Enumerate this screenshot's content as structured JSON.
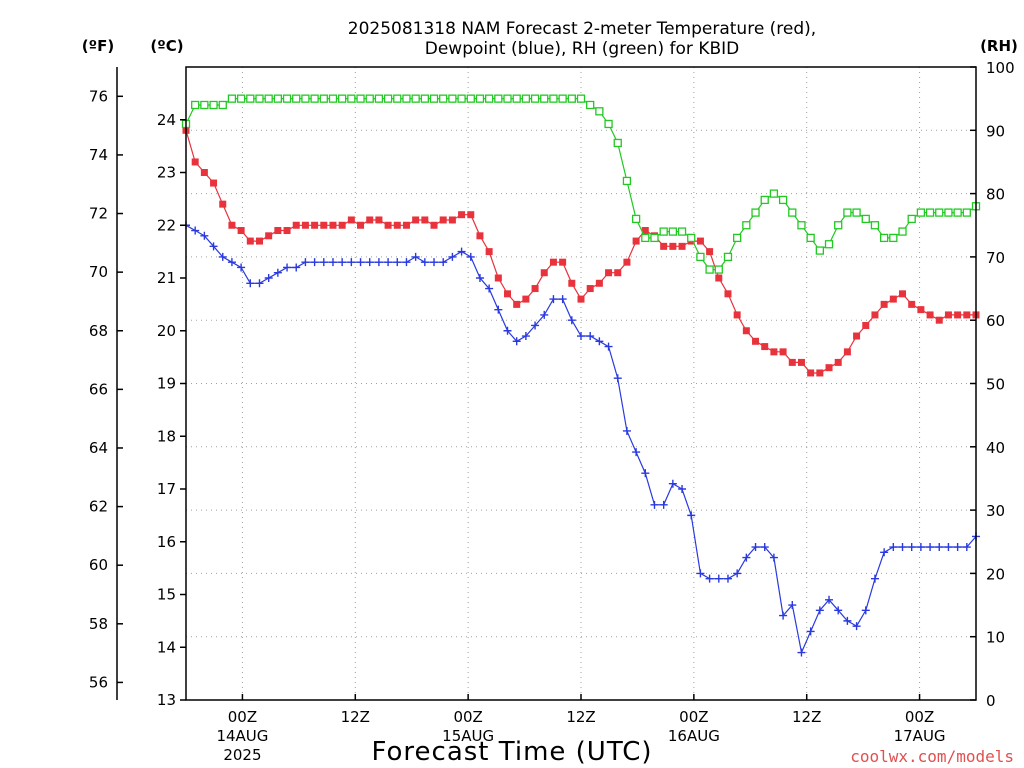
{
  "chart_data": {
    "type": "line",
    "title_line1": "2025081318 NAM Forecast 2-meter Temperature (red),",
    "title_line2": "Dewpoint (blue), RH (green) for KBID",
    "xlabel": "Forecast Time (UTC)",
    "credit": "coolwx.com/models",
    "units": {
      "fahrenheit": "(ºF)",
      "celsius": "(ºC)",
      "rh": "(RH)"
    },
    "x_range_hours": [
      0,
      84
    ],
    "x_ticks": [
      {
        "hour": 6,
        "line1": "00Z",
        "line2": "14AUG",
        "line3": "2025"
      },
      {
        "hour": 18,
        "line1": "12Z",
        "line2": "",
        "line3": ""
      },
      {
        "hour": 30,
        "line1": "00Z",
        "line2": "15AUG",
        "line3": ""
      },
      {
        "hour": 42,
        "line1": "12Z",
        "line2": "",
        "line3": ""
      },
      {
        "hour": 54,
        "line1": "00Z",
        "line2": "16AUG",
        "line3": ""
      },
      {
        "hour": 66,
        "line1": "12Z",
        "line2": "",
        "line3": ""
      },
      {
        "hour": 78,
        "line1": "00Z",
        "line2": "17AUG",
        "line3": ""
      }
    ],
    "celsius_range": [
      13,
      25
    ],
    "celsius_ticks": [
      "13",
      "14",
      "15",
      "16",
      "17",
      "18",
      "19",
      "20",
      "21",
      "22",
      "23",
      "24"
    ],
    "fahrenheit_ticks": [
      "56",
      "58",
      "60",
      "62",
      "64",
      "66",
      "68",
      "70",
      "72",
      "74",
      "76"
    ],
    "rh_range": [
      0,
      100
    ],
    "rh_ticks": [
      "0",
      "10",
      "20",
      "30",
      "40",
      "50",
      "60",
      "70",
      "80",
      "90",
      "100"
    ],
    "grid": true,
    "series": [
      {
        "name": "Temperature",
        "color": "#e8323c",
        "marker": "filled-square",
        "values_c": [
          23.8,
          23.2,
          23.0,
          22.8,
          22.4,
          22.0,
          21.9,
          21.7,
          21.7,
          21.8,
          21.9,
          21.9,
          22.0,
          22.0,
          22.0,
          22.0,
          22.0,
          22.0,
          22.1,
          22.0,
          22.1,
          22.1,
          22.0,
          22.0,
          22.0,
          22.1,
          22.1,
          22.0,
          22.1,
          22.1,
          22.2,
          22.2,
          21.8,
          21.5,
          21.0,
          20.7,
          20.5,
          20.6,
          20.8,
          21.1,
          21.3,
          21.3,
          20.9,
          20.6,
          20.8,
          20.9,
          21.1,
          21.1,
          21.3,
          21.7,
          21.9,
          21.8,
          21.6,
          21.6,
          21.6,
          21.7,
          21.7,
          21.5,
          21.0,
          20.7,
          20.3,
          20.0,
          19.8,
          19.7,
          19.6,
          19.6,
          19.4,
          19.4,
          19.2,
          19.2,
          19.3,
          19.4,
          19.6,
          19.9,
          20.1,
          20.3,
          20.5,
          20.6,
          20.7,
          20.5,
          20.4,
          20.3,
          20.2,
          20.3,
          20.3,
          20.3,
          20.3
        ]
      },
      {
        "name": "Dewpoint",
        "color": "#2a3adf",
        "marker": "plus",
        "values_c": [
          22.0,
          21.9,
          21.8,
          21.6,
          21.4,
          21.3,
          21.2,
          20.9,
          20.9,
          21.0,
          21.1,
          21.2,
          21.2,
          21.3,
          21.3,
          21.3,
          21.3,
          21.3,
          21.3,
          21.3,
          21.3,
          21.3,
          21.3,
          21.3,
          21.3,
          21.4,
          21.3,
          21.3,
          21.3,
          21.4,
          21.5,
          21.4,
          21.0,
          20.8,
          20.4,
          20.0,
          19.8,
          19.9,
          20.1,
          20.3,
          20.6,
          20.6,
          20.2,
          19.9,
          19.9,
          19.8,
          19.7,
          19.1,
          18.1,
          17.7,
          17.3,
          16.7,
          16.7,
          17.1,
          17.0,
          16.5,
          15.4,
          15.3,
          15.3,
          15.3,
          15.4,
          15.7,
          15.9,
          15.9,
          15.7,
          14.6,
          14.8,
          13.9,
          14.3,
          14.7,
          14.9,
          14.7,
          14.5,
          14.4,
          14.7,
          15.3,
          15.8,
          15.9,
          15.9,
          15.9,
          15.9,
          15.9,
          15.9,
          15.9,
          15.9,
          15.9,
          16.1
        ]
      },
      {
        "name": "RH",
        "color": "#22c922",
        "marker": "open-square",
        "values_rh": [
          91,
          94,
          94,
          94,
          94,
          95,
          95,
          95,
          95,
          95,
          95,
          95,
          95,
          95,
          95,
          95,
          95,
          95,
          95,
          95,
          95,
          95,
          95,
          95,
          95,
          95,
          95,
          95,
          95,
          95,
          95,
          95,
          95,
          95,
          95,
          95,
          95,
          95,
          95,
          95,
          95,
          95,
          95,
          95,
          94,
          93,
          91,
          88,
          82,
          76,
          73,
          73,
          74,
          74,
          74,
          73,
          70,
          68,
          68,
          70,
          73,
          75,
          77,
          79,
          80,
          79,
          77,
          75,
          73,
          71,
          72,
          75,
          77,
          77,
          76,
          75,
          73,
          73,
          74,
          76,
          77,
          77,
          77,
          77,
          77,
          77,
          78
        ]
      }
    ]
  }
}
